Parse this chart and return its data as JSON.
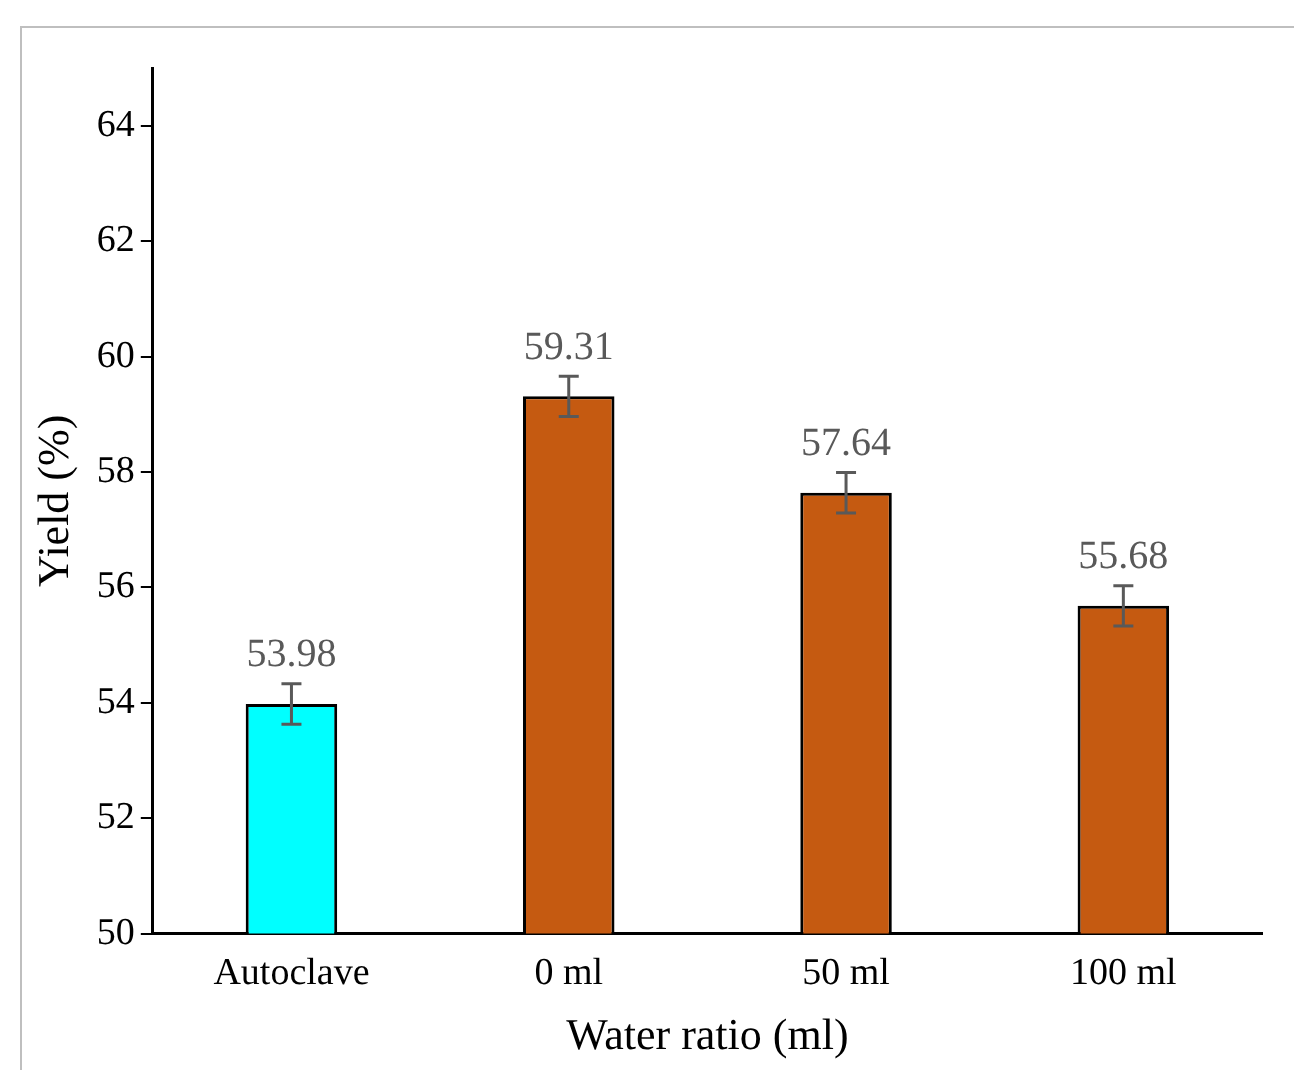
{
  "chart_data": {
    "type": "bar",
    "xlabel": "Water ratio (ml)",
    "ylabel": "Yield (%)",
    "categories": [
      "Autoclave",
      "0 ml",
      "50 ml",
      "100 ml"
    ],
    "values": [
      53.98,
      59.31,
      57.64,
      55.68
    ],
    "errors": [
      0.35,
      0.35,
      0.35,
      0.35
    ],
    "colors": [
      "#00ffff",
      "#c55a11",
      "#c55a11",
      "#c55a11"
    ],
    "ylim": [
      50,
      65
    ],
    "yticks": [
      50,
      52,
      54,
      56,
      58,
      60,
      62,
      64
    ],
    "grid": false,
    "legend": false,
    "data_labels": true
  }
}
